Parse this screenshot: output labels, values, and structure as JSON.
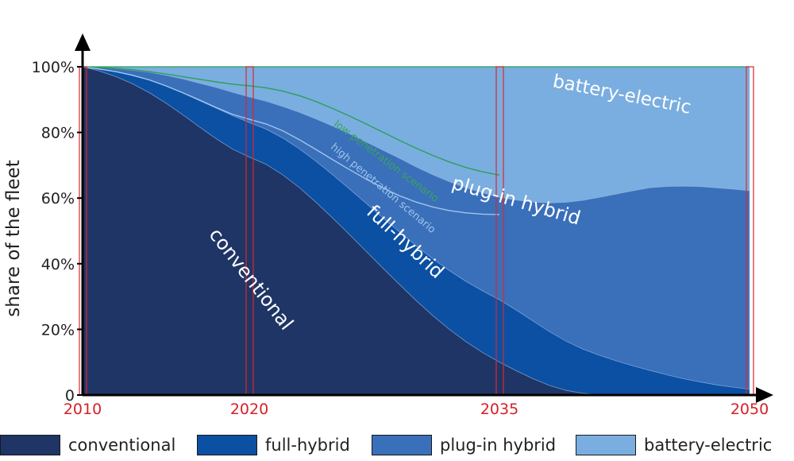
{
  "chart_data": {
    "type": "area",
    "stacked": true,
    "ylabel": "share of the fleet",
    "xlabel": "",
    "xlim": [
      2010,
      2050
    ],
    "ylim": [
      0,
      100
    ],
    "x_ticks": [
      "2010",
      "2020",
      "2035",
      "2050"
    ],
    "y_ticks": [
      "0",
      "20%",
      "40%",
      "60%",
      "80%",
      "100%"
    ],
    "y_tick_values": [
      0,
      20,
      40,
      60,
      80,
      100
    ],
    "grid": false,
    "legend_position": "bottom",
    "x": [
      2010,
      2011,
      2012,
      2013,
      2014,
      2015,
      2016,
      2017,
      2018,
      2019,
      2020,
      2021,
      2022,
      2023,
      2024,
      2025,
      2026,
      2027,
      2028,
      2029,
      2030,
      2031,
      2032,
      2033,
      2034,
      2035,
      2036,
      2037,
      2038,
      2039,
      2040,
      2041,
      2042,
      2043,
      2044,
      2045,
      2046,
      2047,
      2048,
      2049,
      2050
    ],
    "series": [
      {
        "name": "conventional",
        "color": "#1f3565",
        "values": [
          100,
          98.7,
          97.0,
          94.8,
          92.1,
          88.9,
          85.4,
          81.7,
          78.1,
          74.9,
          72.5,
          70.3,
          67.1,
          63.2,
          58.7,
          53.9,
          48.9,
          43.8,
          38.7,
          33.7,
          28.8,
          24.2,
          20.0,
          16.2,
          12.9,
          10.0,
          7.4,
          5.0,
          2.9,
          1.4,
          0.5,
          0.1,
          0,
          0,
          0,
          0,
          0,
          0,
          0,
          0,
          0
        ]
      },
      {
        "name": "full-hybrid",
        "color": "#0b50a3",
        "values": [
          0,
          0.7,
          1.5,
          2.5,
          3.8,
          5.2,
          6.6,
          8.0,
          9.3,
          10.2,
          10.5,
          10.7,
          11.2,
          11.8,
          12.5,
          13.2,
          13.9,
          14.6,
          15.3,
          16.0,
          16.7,
          17.3,
          17.9,
          18.4,
          18.8,
          19.0,
          18.5,
          17.6,
          16.4,
          15.0,
          13.5,
          12.0,
          10.4,
          8.9,
          7.5,
          6.2,
          5.0,
          4.0,
          3.1,
          2.4,
          1.8
        ]
      },
      {
        "name": "plug-in hybrid",
        "color": "#3a6fba",
        "values": [
          0,
          0.4,
          0.9,
          1.6,
          2.4,
          3.3,
          4.3,
          5.3,
          6.3,
          7.1,
          7.8,
          8.5,
          9.6,
          11.1,
          12.9,
          14.8,
          16.8,
          18.7,
          20.6,
          22.4,
          24.0,
          25.6,
          27.1,
          28.5,
          29.9,
          31.2,
          33.5,
          36.2,
          39.2,
          42.3,
          45.3,
          48.1,
          50.8,
          53.3,
          55.6,
          57.3,
          58.6,
          59.5,
          60.0,
          60.3,
          60.4
        ]
      },
      {
        "name": "battery-electric",
        "color": "#7aaee0",
        "values": [
          0,
          0.2,
          0.6,
          1.1,
          1.7,
          2.6,
          3.7,
          5.0,
          6.3,
          7.8,
          9.2,
          10.5,
          12.1,
          13.9,
          15.9,
          18.1,
          20.4,
          22.9,
          25.4,
          27.9,
          30.5,
          32.9,
          35.0,
          36.9,
          38.4,
          39.8,
          40.6,
          41.2,
          41.5,
          41.3,
          40.7,
          39.8,
          38.8,
          37.8,
          36.9,
          36.5,
          36.4,
          36.5,
          36.9,
          37.3,
          37.8
        ]
      }
    ],
    "scenario_lines": [
      {
        "name": "low penetration scenario",
        "color": "#2e9e5a",
        "values": [
          100,
          99.8,
          99.5,
          99.1,
          98.5,
          97.8,
          97.0,
          96.2,
          95.4,
          94.7,
          94.2,
          93.6,
          92.6,
          91.2,
          89.4,
          87.3,
          85.0,
          82.6,
          80.1,
          77.6,
          75.2,
          73.0,
          71.0,
          69.3,
          68.0,
          67.0
        ]
      },
      {
        "name": "high penetration scenario",
        "color": "#9ec5ea",
        "values": [
          100,
          99.3,
          98.5,
          97.4,
          96.0,
          94.2,
          92.1,
          89.9,
          87.6,
          85.5,
          84.0,
          82.6,
          80.5,
          77.8,
          74.8,
          71.7,
          68.7,
          65.8,
          63.1,
          60.7,
          58.8,
          57.3,
          56.2,
          55.5,
          55.1,
          55.0
        ]
      }
    ],
    "annotations": [
      {
        "text": "conventional",
        "color": "#ffffff"
      },
      {
        "text": "full-hybrid",
        "color": "#ffffff"
      },
      {
        "text": "plug-in hybrid",
        "color": "#ffffff"
      },
      {
        "text": "battery-electric",
        "color": "#ffffff"
      },
      {
        "text": "low penetration scenario",
        "color": "#3aa35c"
      },
      {
        "text": "high penetration scenario",
        "color": "#9ec5ea"
      }
    ],
    "highlight_years": [
      2010,
      2020,
      2035,
      2050
    ],
    "highlight_color": "#e0262c",
    "axis_color": "#000000",
    "tick_label_color": "#222222",
    "x_tick_label_color": "#d42127"
  }
}
